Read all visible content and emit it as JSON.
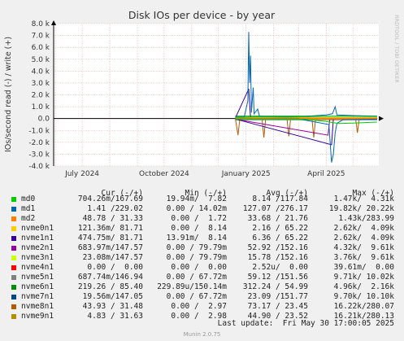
{
  "chart_data": {
    "type": "line",
    "title": "Disk IOs per device - by year",
    "ylabel": "IOs/second read (-) / write (+)",
    "side_label": "RRDTOOL / TOBI OETIKER",
    "ylim": [
      -4000,
      8000
    ],
    "yticks": [
      8000,
      7000,
      6000,
      5000,
      4000,
      3000,
      2000,
      1000,
      0,
      -1000,
      -2000,
      -3000,
      -4000
    ],
    "ytick_labels": [
      "8.0 k",
      "7.0 k",
      "6.0 k",
      "5.0 k",
      "4.0 k",
      "3.0 k",
      "2.0 k",
      "1.0 k",
      "0.0",
      "-1.0 k",
      "-2.0 k",
      "-3.0 k",
      "-4.0 k"
    ],
    "xlim": [
      "2024-05-30",
      "2025-05-30"
    ],
    "xticks": [
      {
        "date": "2024-07-01",
        "label": "July 2024"
      },
      {
        "date": "2024-10-01",
        "label": "October 2024"
      },
      {
        "date": "2025-01-01",
        "label": "January 2025"
      },
      {
        "date": "2025-04-01",
        "label": "April 2025"
      }
    ],
    "xgrid_minor": [
      "2024-06-01",
      "2024-08-01",
      "2024-09-01",
      "2024-11-01",
      "2024-12-01",
      "2025-02-01",
      "2025-03-01",
      "2025-05-01"
    ],
    "grid": true,
    "data_start": "2024-12-20",
    "series": [
      {
        "name": "md0",
        "color": "#00cc00",
        "write": [
          [
            "2024-12-20",
            100
          ],
          [
            "2025-01-15",
            150
          ],
          [
            "2025-02-15",
            120
          ],
          [
            "2025-03-15",
            160
          ],
          [
            "2025-04-15",
            200
          ],
          [
            "2025-05-28",
            160
          ]
        ],
        "read": [
          [
            "2024-12-20",
            -20
          ],
          [
            "2025-02-01",
            -40
          ],
          [
            "2025-03-10",
            -60
          ],
          [
            "2025-04-01",
            -250
          ],
          [
            "2025-04-15",
            -420
          ],
          [
            "2025-05-01",
            -380
          ],
          [
            "2025-05-28",
            -300
          ]
        ]
      },
      {
        "name": "md1",
        "color": "#0066b3",
        "write": [
          [
            "2024-12-20",
            120
          ],
          [
            "2024-12-30",
            150
          ],
          [
            "2025-01-03",
            1500
          ],
          [
            "2025-01-04",
            7300
          ],
          [
            "2025-01-05",
            3000
          ],
          [
            "2025-01-06",
            5300
          ],
          [
            "2025-01-07",
            500
          ],
          [
            "2025-01-09",
            2600
          ],
          [
            "2025-01-10",
            400
          ],
          [
            "2025-01-14",
            800
          ],
          [
            "2025-01-16",
            200
          ],
          [
            "2025-02-01",
            150
          ],
          [
            "2025-03-01",
            150
          ],
          [
            "2025-04-01",
            300
          ],
          [
            "2025-04-08",
            400
          ],
          [
            "2025-04-11",
            1000
          ],
          [
            "2025-04-13",
            300
          ],
          [
            "2025-05-01",
            250
          ],
          [
            "2025-05-28",
            200
          ]
        ],
        "read": [
          [
            "2024-12-20",
            -30
          ],
          [
            "2025-03-01",
            -30
          ],
          [
            "2025-04-04",
            -500
          ],
          [
            "2025-04-07",
            -3700
          ],
          [
            "2025-04-09",
            -3000
          ],
          [
            "2025-04-11",
            -1200
          ],
          [
            "2025-04-13",
            -400
          ],
          [
            "2025-04-20",
            -100
          ],
          [
            "2025-05-28",
            -50
          ]
        ]
      },
      {
        "name": "md2",
        "color": "#ff8000",
        "write": [
          [
            "2024-12-20",
            40
          ],
          [
            "2025-05-28",
            40
          ]
        ],
        "read": [
          [
            "2024-12-20",
            -20
          ],
          [
            "2025-05-28",
            -20
          ]
        ]
      },
      {
        "name": "nvme0n1",
        "color": "#ffcc00",
        "write": [
          [
            "2024-12-20",
            80
          ],
          [
            "2025-05-28",
            80
          ]
        ],
        "read": [
          [
            "2024-12-20",
            -40
          ],
          [
            "2025-05-28",
            -40
          ]
        ]
      },
      {
        "name": "nvme1n1",
        "color": "#330099",
        "write": [
          [
            "2024-12-20",
            60
          ],
          [
            "2025-01-04",
            2500
          ],
          [
            "2025-01-06",
            60
          ],
          [
            "2025-05-28",
            60
          ]
        ],
        "read": [
          [
            "2024-12-20",
            -40
          ],
          [
            "2025-04-07",
            -2200
          ],
          [
            "2025-04-09",
            -40
          ],
          [
            "2025-05-28",
            -40
          ]
        ]
      },
      {
        "name": "nvme2n1",
        "color": "#990099",
        "write": [
          [
            "2024-12-20",
            80
          ],
          [
            "2025-05-28",
            80
          ]
        ],
        "read": [
          [
            "2024-12-20",
            -60
          ],
          [
            "2025-04-03",
            -1400
          ],
          [
            "2025-04-05",
            -60
          ],
          [
            "2025-05-28",
            -60
          ]
        ]
      },
      {
        "name": "nvme3n1",
        "color": "#ccff00",
        "write": [
          [
            "2024-12-20",
            30
          ],
          [
            "2025-05-28",
            30
          ]
        ],
        "read": [
          [
            "2024-12-20",
            -20
          ],
          [
            "2025-05-28",
            -20
          ]
        ]
      },
      {
        "name": "nvme4n1",
        "color": "#ff0000",
        "write": [
          [
            "2024-12-20",
            0
          ],
          [
            "2025-05-28",
            0
          ]
        ],
        "read": [
          [
            "2024-12-20",
            0
          ],
          [
            "2025-05-28",
            0
          ]
        ]
      },
      {
        "name": "nvme5n1",
        "color": "#808080",
        "write": [
          [
            "2024-12-20",
            60
          ],
          [
            "2025-05-28",
            60
          ]
        ],
        "read": [
          [
            "2024-12-20",
            -100
          ],
          [
            "2025-05-28",
            -100
          ]
        ]
      },
      {
        "name": "nvme6n1",
        "color": "#008f00",
        "write": [
          [
            "2024-12-20",
            200
          ],
          [
            "2025-05-28",
            200
          ]
        ],
        "read": [
          [
            "2024-12-20",
            -60
          ],
          [
            "2025-05-28",
            -60
          ]
        ]
      },
      {
        "name": "nvme7n1",
        "color": "#00487d",
        "write": [
          [
            "2024-12-20",
            30
          ],
          [
            "2025-05-28",
            30
          ]
        ],
        "read": [
          [
            "2024-12-20",
            -100
          ],
          [
            "2025-05-28",
            -100
          ]
        ]
      },
      {
        "name": "nvme8n1",
        "color": "#b35a00",
        "write": [
          [
            "2024-12-20",
            60
          ],
          [
            "2025-05-28",
            60
          ]
        ],
        "read": [
          [
            "2024-12-20",
            -20
          ],
          [
            "2024-12-23",
            -1400
          ],
          [
            "2024-12-25",
            -20
          ],
          [
            "2025-01-19",
            -20
          ],
          [
            "2025-01-21",
            -1600
          ],
          [
            "2025-01-23",
            -20
          ],
          [
            "2025-02-16",
            -20
          ],
          [
            "2025-02-18",
            -1500
          ],
          [
            "2025-02-20",
            -20
          ],
          [
            "2025-03-16",
            -20
          ],
          [
            "2025-03-18",
            -1600
          ],
          [
            "2025-03-20",
            -20
          ],
          [
            "2025-05-04",
            -20
          ],
          [
            "2025-05-06",
            -1200
          ],
          [
            "2025-05-08",
            -20
          ],
          [
            "2025-05-28",
            -20
          ]
        ]
      },
      {
        "name": "nvme9n1",
        "color": "#b38f00",
        "write": [
          [
            "2024-12-20",
            20
          ],
          [
            "2025-05-28",
            20
          ]
        ],
        "read": [
          [
            "2024-12-20",
            -20
          ],
          [
            "2025-05-28",
            -20
          ]
        ]
      }
    ]
  },
  "legend": {
    "headers": {
      "cur": "Cur (-/+)",
      "min": "Min (-/+)",
      "avg": "Avg (-/+)",
      "max": "Max (-/+)"
    },
    "rows": [
      {
        "name": "md0",
        "color": "#00cc00",
        "cur": "704.26m/167.69",
        "min": "19.94m/  7.82",
        "avg": "8.14 /117.84",
        "max": "1.47k/  4.31k"
      },
      {
        "name": "md1",
        "color": "#0066b3",
        "cur": "1.41 /229.02",
        "min": "0.00 / 14.02m",
        "avg": "127.07 /276.17",
        "max": "19.82k/ 20.22k"
      },
      {
        "name": "md2",
        "color": "#ff8000",
        "cur": "48.78 / 31.33",
        "min": "0.00 /  1.72",
        "avg": "33.68 / 21.76",
        "max": "1.43k/283.99"
      },
      {
        "name": "nvme0n1",
        "color": "#ffcc00",
        "cur": "121.36m/ 81.71",
        "min": "0.00 /  8.14",
        "avg": "2.16 / 65.22",
        "max": "2.62k/  4.09k"
      },
      {
        "name": "nvme1n1",
        "color": "#330099",
        "cur": "474.75m/ 81.71",
        "min": "13.91m/  8.14",
        "avg": "6.36 / 65.22",
        "max": "2.62k/  4.09k"
      },
      {
        "name": "nvme2n1",
        "color": "#990099",
        "cur": "683.97m/147.57",
        "min": "0.00 / 79.79m",
        "avg": "52.92 /152.16",
        "max": "4.32k/  9.61k"
      },
      {
        "name": "nvme3n1",
        "color": "#ccff00",
        "cur": "23.08m/147.57",
        "min": "0.00 / 79.79m",
        "avg": "15.78 /152.16",
        "max": "3.76k/  9.61k"
      },
      {
        "name": "nvme4n1",
        "color": "#ff0000",
        "cur": "0.00 /  0.00",
        "min": "0.00 /  0.00",
        "avg": "2.52u/  0.00",
        "max": "39.61m/  0.00"
      },
      {
        "name": "nvme5n1",
        "color": "#808080",
        "cur": "687.74m/146.94",
        "min": "0.00 / 67.72m",
        "avg": "59.12 /151.56",
        "max": "9.71k/ 10.02k"
      },
      {
        "name": "nvme6n1",
        "color": "#008f00",
        "cur": "219.26 / 85.40",
        "min": "229.89u/150.14m",
        "avg": "312.24 / 54.99",
        "max": "4.96k/  2.16k"
      },
      {
        "name": "nvme7n1",
        "color": "#00487d",
        "cur": "19.56m/147.05",
        "min": "0.00 / 67.72m",
        "avg": "23.09 /151.77",
        "max": "9.70k/ 10.10k"
      },
      {
        "name": "nvme8n1",
        "color": "#b35a00",
        "cur": "43.93 / 31.48",
        "min": "0.00 /  2.97",
        "avg": "73.17 / 23.45",
        "max": "16.22k/280.07"
      },
      {
        "name": "nvme9n1",
        "color": "#b38f00",
        "cur": "4.83 / 31.63",
        "min": "0.00 /  2.98",
        "avg": "44.90 / 23.52",
        "max": "16.21k/280.13"
      }
    ]
  },
  "footer": {
    "last_update": "Last update:  Fri May 30 17:00:05 2025",
    "munin": "Munin 2.0.75"
  }
}
